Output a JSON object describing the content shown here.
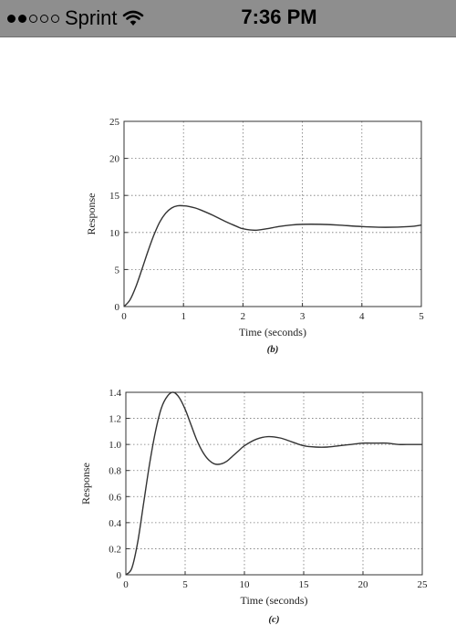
{
  "status_bar": {
    "signal_bars_filled": 2,
    "signal_bars_total": 5,
    "carrier": "Sprint",
    "time": "7:36 PM"
  },
  "chart_data": [
    {
      "type": "line",
      "caption": "(b)",
      "xlabel": "Time (seconds)",
      "ylabel": "Response",
      "xlim": [
        0,
        5
      ],
      "ylim": [
        0,
        25
      ],
      "xticks": [
        "0",
        "1",
        "2",
        "3",
        "4",
        "5"
      ],
      "yticks": [
        "0",
        "5",
        "10",
        "15",
        "20",
        "25"
      ],
      "grid": "dotted",
      "series": [
        {
          "x": [
            0,
            0.1,
            0.2,
            0.3,
            0.4,
            0.5,
            0.6,
            0.7,
            0.8,
            0.9,
            1.0,
            1.1,
            1.2,
            1.3,
            1.5,
            1.7,
            1.9,
            2.0,
            2.2,
            2.4,
            2.6,
            2.8,
            3.0,
            3.3,
            3.6,
            4.0,
            4.4,
            4.8,
            5.0
          ],
          "y": [
            0,
            0.9,
            2.7,
            5.0,
            7.4,
            9.6,
            11.4,
            12.6,
            13.3,
            13.6,
            13.6,
            13.5,
            13.3,
            13.0,
            12.3,
            11.5,
            10.8,
            10.5,
            10.3,
            10.5,
            10.8,
            11.0,
            11.1,
            11.1,
            11.0,
            10.8,
            10.7,
            10.8,
            11.0
          ]
        }
      ]
    },
    {
      "type": "line",
      "caption": "(c)",
      "xlabel": "Time (seconds)",
      "ylabel": "Response",
      "xlim": [
        0,
        25
      ],
      "ylim": [
        0,
        1.4
      ],
      "xticks": [
        "0",
        "5",
        "10",
        "15",
        "20",
        "25"
      ],
      "yticks": [
        "0",
        "0.2",
        "0.4",
        "0.6",
        "0.8",
        "1.0",
        "1.2",
        "1.4"
      ],
      "grid": "dotted",
      "series": [
        {
          "x": [
            0,
            0.5,
            1.0,
            1.5,
            2.0,
            2.5,
            3.0,
            3.5,
            4.0,
            4.5,
            5.0,
            5.5,
            6.0,
            6.5,
            7.0,
            7.5,
            8.0,
            8.5,
            9.0,
            9.5,
            10.0,
            11.0,
            12.0,
            13.0,
            14.0,
            15.0,
            16.0,
            17.0,
            18.0,
            19.0,
            20.0,
            21.0,
            22.0,
            23.0,
            24.0,
            25.0
          ],
          "y": [
            0,
            0.05,
            0.25,
            0.55,
            0.85,
            1.1,
            1.28,
            1.37,
            1.4,
            1.36,
            1.27,
            1.15,
            1.03,
            0.94,
            0.88,
            0.85,
            0.85,
            0.87,
            0.91,
            0.95,
            0.99,
            1.04,
            1.06,
            1.05,
            1.02,
            0.99,
            0.98,
            0.98,
            0.99,
            1.0,
            1.01,
            1.01,
            1.01,
            1.0,
            1.0,
            1.0
          ]
        }
      ]
    }
  ]
}
